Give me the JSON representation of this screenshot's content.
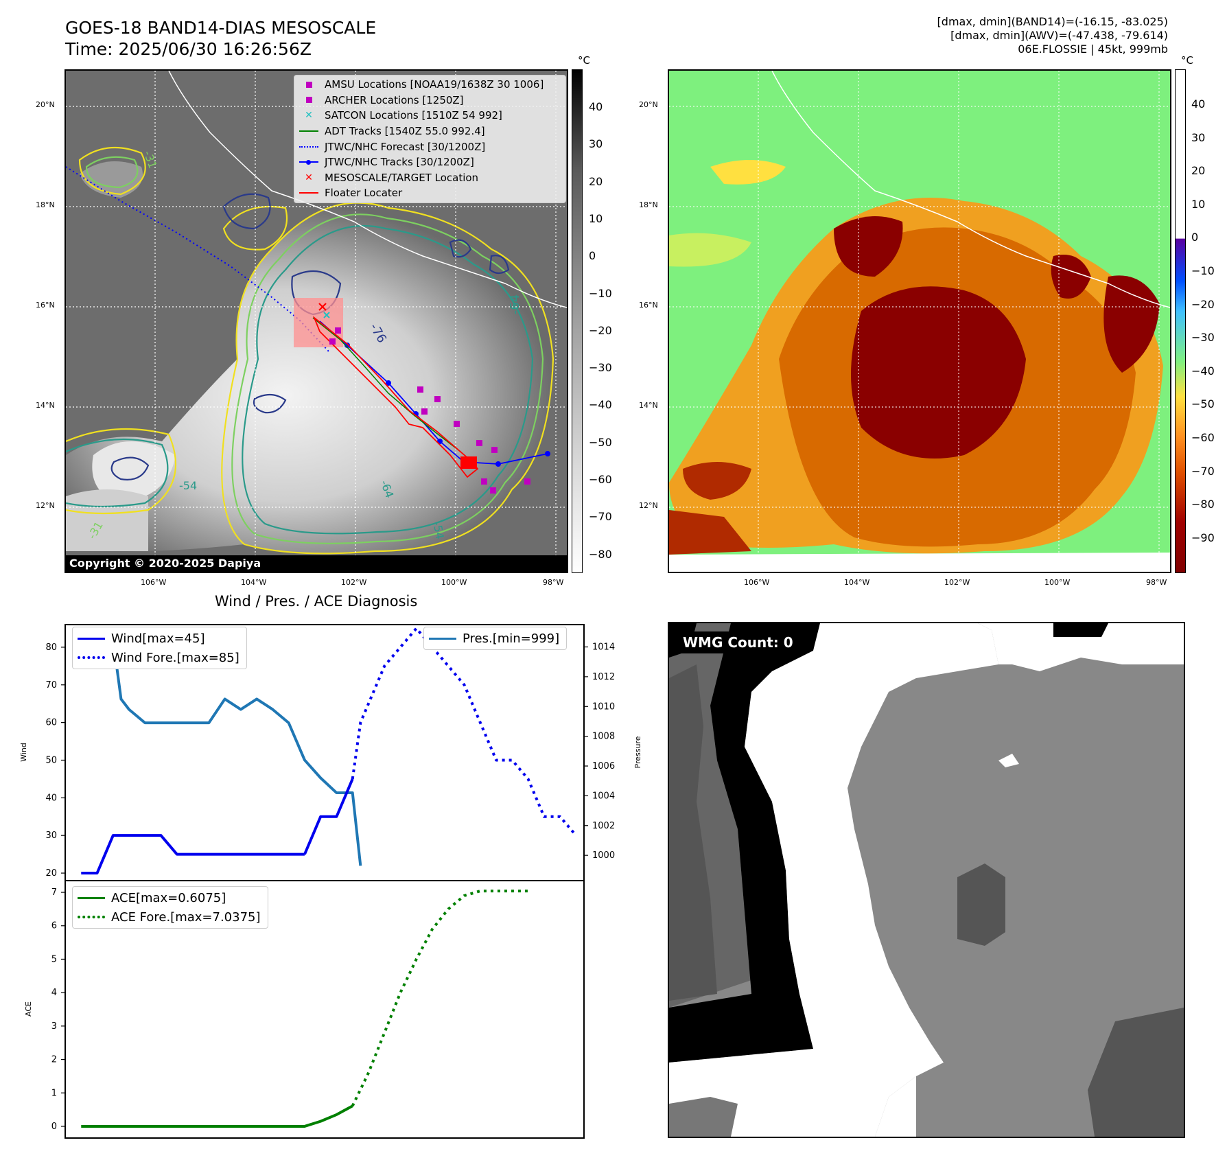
{
  "header": {
    "title_line1": "GOES-18 BAND14-DIAS MESOSCALE",
    "title_line2": "Time: 2025/06/30 16:26:56Z",
    "info_line1": "[dmax, dmin](BAND14)=(-16.15, -83.025)",
    "info_line2": "[dmax, dmin](AWV)=(-47.438, -79.614)",
    "info_line3": "06E.FLOSSIE | 45kt, 999mb"
  },
  "map_left": {
    "lat_labels": [
      "20°N",
      "18°N",
      "16°N",
      "14°N",
      "12°N"
    ],
    "lon_labels": [
      "106°W",
      "104°W",
      "102°W",
      "100°W",
      "98°W"
    ],
    "copyright": "Copyright © 2020-2025 Dapiya",
    "legend": [
      {
        "label": "AMSU Locations [NOAA19/1638Z 30 1006]",
        "symbol": "square",
        "color": "#c000c0"
      },
      {
        "label": "ARCHER Locations [1250Z]",
        "symbol": "square",
        "color": "#c000c0"
      },
      {
        "label": "SATCON Locations [1510Z 54 992]",
        "symbol": "x",
        "color": "#20c0c0"
      },
      {
        "label": "ADT Tracks [1540Z 55.0 992.4]",
        "symbol": "line",
        "color": "#008000"
      },
      {
        "label": "JTWC/NHC Forecast [30/1200Z]",
        "symbol": "dotted",
        "color": "#0000ff"
      },
      {
        "label": "JTWC/NHC Tracks [30/1200Z]",
        "symbol": "line-dot",
        "color": "#0000ff"
      },
      {
        "label": "MESOSCALE/TARGET Location",
        "symbol": "x",
        "color": "#ff0000"
      },
      {
        "label": "Floater Locater",
        "symbol": "line",
        "color": "#ff0000"
      }
    ],
    "contour_labels": [
      "-76",
      "-64",
      "-54",
      "-31",
      "-64",
      "-54",
      "-31"
    ],
    "colorbar_unit": "°C",
    "colorbar_ticks": [
      "40",
      "30",
      "20",
      "10",
      "0",
      "−10",
      "−20",
      "−30",
      "−40",
      "−50",
      "−60",
      "−70",
      "−80"
    ]
  },
  "map_right": {
    "lat_labels": [
      "20°N",
      "18°N",
      "16°N",
      "14°N",
      "12°N"
    ],
    "lon_labels": [
      "106°W",
      "104°W",
      "102°W",
      "100°W",
      "98°W"
    ],
    "colorbar_unit": "°C",
    "colorbar_ticks": [
      "40",
      "30",
      "20",
      "10",
      "0",
      "−10",
      "−20",
      "−30",
      "−40",
      "−50",
      "−60",
      "−70",
      "−80",
      "−90"
    ]
  },
  "wmg": {
    "label": "WMG Count: 0"
  },
  "chart_data": [
    {
      "type": "line",
      "title": "Wind / Pres. / ACE Diagnosis",
      "ylabel": "Wind",
      "y2label": "Pressure",
      "ylim": [
        18,
        86
      ],
      "y2lim": [
        998.3,
        1015.5
      ],
      "yticks": [
        20,
        30,
        40,
        50,
        60,
        70,
        80
      ],
      "y2ticks": [
        1000,
        1002,
        1004,
        1006,
        1008,
        1010,
        1012,
        1014
      ],
      "legend_left": [
        "Wind[max=45]",
        "Wind Fore.[max=85]"
      ],
      "legend_right": [
        "Pres.[min=999]"
      ],
      "wind": {
        "x": [
          0,
          1,
          2,
          3,
          4,
          5,
          6,
          7,
          8,
          9,
          10,
          11,
          12,
          13,
          14
        ],
        "y": [
          20,
          20,
          30,
          30,
          30,
          30,
          25,
          25,
          25,
          25,
          25,
          25,
          25,
          25,
          25
        ]
      },
      "wind_tail": {
        "x": [
          14,
          15,
          16,
          17
        ],
        "y": [
          25,
          35,
          35,
          45
        ]
      },
      "wind_fore": {
        "x": [
          17,
          17.5,
          18,
          19,
          20,
          21,
          22,
          23,
          24,
          25,
          26,
          27,
          28,
          29,
          30,
          31
        ],
        "y": [
          45,
          60,
          65,
          75,
          80,
          85,
          80,
          75,
          70,
          60,
          50,
          50,
          45,
          35,
          35,
          30
        ]
      },
      "pressure": {
        "x": [
          0,
          1,
          2,
          2.5,
          3,
          4,
          5,
          6,
          7,
          8,
          9,
          10,
          11,
          12,
          13,
          14,
          15,
          16,
          17,
          17.5
        ],
        "y": [
          1014.5,
          1014.5,
          1014.5,
          1010.5,
          1009.8,
          1008.9,
          1008.9,
          1008.9,
          1008.9,
          1008.9,
          1010.5,
          1009.8,
          1010.5,
          1009.8,
          1008.9,
          1006.4,
          1005.2,
          1004.2,
          1004.2,
          999.3
        ]
      }
    },
    {
      "type": "line",
      "ylabel": "ACE",
      "ylim": [
        -0.35,
        7.35
      ],
      "yticks": [
        0,
        1,
        2,
        3,
        4,
        5,
        6,
        7
      ],
      "legend": [
        "ACE[max=0.6075]",
        "ACE Fore.[max=7.0375]"
      ],
      "ace": {
        "x": [
          0,
          5,
          10,
          14,
          15,
          16,
          17
        ],
        "y": [
          0,
          0,
          0,
          0,
          0.15,
          0.35,
          0.61
        ]
      },
      "ace_fore": {
        "x": [
          17,
          18,
          19,
          20,
          21,
          22,
          23,
          24,
          25,
          26,
          27,
          28
        ],
        "y": [
          0.61,
          1.6,
          2.8,
          4.0,
          5.0,
          5.9,
          6.5,
          6.9,
          7.04,
          7.04,
          7.04,
          7.04
        ]
      }
    }
  ]
}
